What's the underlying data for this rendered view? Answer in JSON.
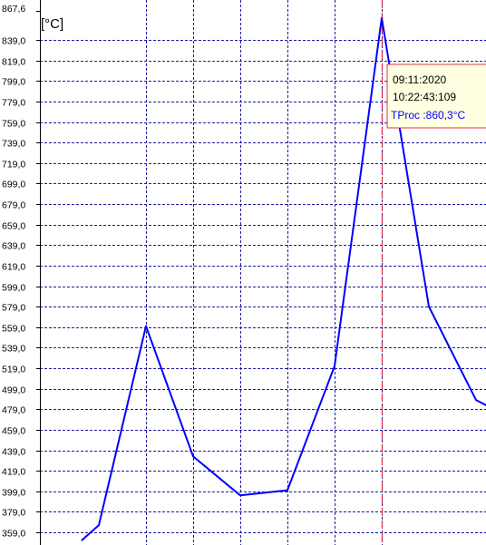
{
  "chart_data": {
    "type": "line",
    "title": "",
    "unit_label": "[°C]",
    "xlabel": "",
    "ylabel": "[°C]",
    "ylim": [
      351.0,
      867.6
    ],
    "y_ticks": [
      {
        "value": 867.6,
        "label": "867,6"
      },
      {
        "value": 839.0,
        "label": "839,0"
      },
      {
        "value": 819.0,
        "label": "819,0"
      },
      {
        "value": 799.0,
        "label": "799,0"
      },
      {
        "value": 779.0,
        "label": "779,0"
      },
      {
        "value": 759.0,
        "label": "759,0"
      },
      {
        "value": 739.0,
        "label": "739,0"
      },
      {
        "value": 719.0,
        "label": "719,0"
      },
      {
        "value": 699.0,
        "label": "699,0"
      },
      {
        "value": 679.0,
        "label": "679,0"
      },
      {
        "value": 659.0,
        "label": "659,0"
      },
      {
        "value": 639.0,
        "label": "639,0"
      },
      {
        "value": 619.0,
        "label": "619,0"
      },
      {
        "value": 599.0,
        "label": "599,0"
      },
      {
        "value": 579.0,
        "label": "579,0"
      },
      {
        "value": 559.0,
        "label": "559,0"
      },
      {
        "value": 539.0,
        "label": "539,0"
      },
      {
        "value": 519.0,
        "label": "519,0"
      },
      {
        "value": 499.0,
        "label": "499,0"
      },
      {
        "value": 479.0,
        "label": "479,0"
      },
      {
        "value": 459.0,
        "label": "459,0"
      },
      {
        "value": 439.0,
        "label": "439,0"
      },
      {
        "value": 419.0,
        "label": "419,0"
      },
      {
        "value": 399.0,
        "label": "399,0"
      },
      {
        "value": 379.0,
        "label": "379,0"
      },
      {
        "value": 359.0,
        "label": "359,0"
      }
    ],
    "x_range": [
      -1.37,
      7.5
    ],
    "x_gridlines": [
      0,
      1,
      2,
      3,
      4,
      5
    ],
    "series": [
      {
        "color": "#0000ff",
        "points": [
          {
            "x": -1.37,
            "y": 351.0
          },
          {
            "x": -1.0,
            "y": 366.0
          },
          {
            "x": 0.0,
            "y": 560.0
          },
          {
            "x": 1.0,
            "y": 433.0
          },
          {
            "x": 2.0,
            "y": 395.0
          },
          {
            "x": 3.0,
            "y": 400.0
          },
          {
            "x": 4.0,
            "y": 521.0
          },
          {
            "x": 5.0,
            "y": 860.3
          },
          {
            "x": 6.0,
            "y": 579.0
          },
          {
            "x": 7.0,
            "y": 488.0
          },
          {
            "x": 7.5,
            "y": 476.0
          }
        ]
      }
    ],
    "cursor": {
      "x": 5.0,
      "color": "#e0304c",
      "date": "09:11:2020",
      "time": "10:22:43:109",
      "reading": "TProc :860,3°C"
    },
    "grid": true,
    "legend": "none"
  },
  "colors": {
    "grid": "#1c1c9c",
    "axis": "#000000",
    "line": "#0000ff",
    "cursor": "#e0304c",
    "tooltip_bg": "#ffffe1",
    "tooltip_border": "#e0304c",
    "tooltip_reading": "#0000ff"
  }
}
